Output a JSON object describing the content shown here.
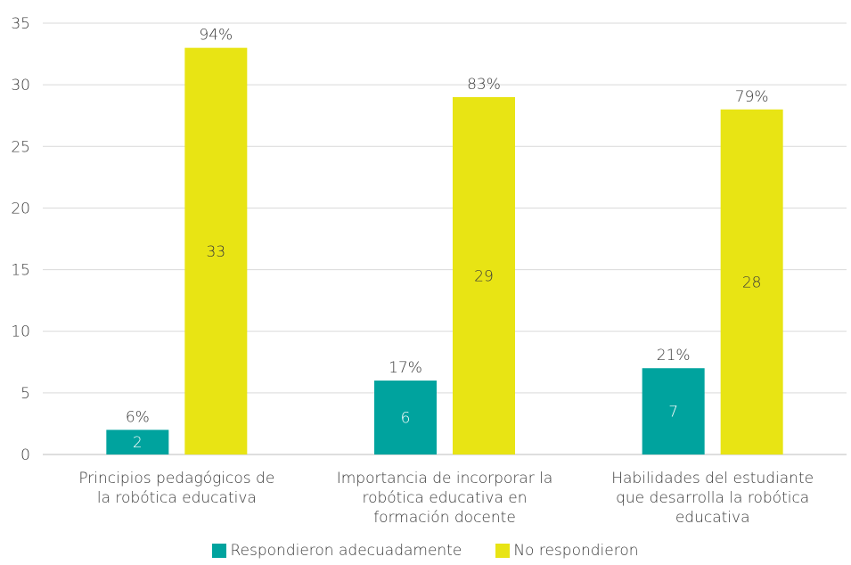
{
  "chart_data": {
    "type": "bar",
    "title": "",
    "xlabel": "",
    "ylabel": "",
    "ylim": [
      0,
      35
    ],
    "yticks": [
      0,
      5,
      10,
      15,
      20,
      25,
      30,
      35
    ],
    "grid": true,
    "legend_position": "bottom",
    "categories": [
      [
        "Principios pedagógicos de",
        "la robótica educativa"
      ],
      [
        "Importancia de incorporar la",
        "robótica educativa en",
        "formación docente"
      ],
      [
        "Habilidades del estudiante",
        "que desarrolla la robótica",
        "educativa"
      ]
    ],
    "series": [
      {
        "name": "Respondieron adecuadamente",
        "color": "#00a39e",
        "values": [
          2,
          6,
          7
        ],
        "percent_labels": [
          "6%",
          "17%",
          "21%"
        ]
      },
      {
        "name": "No respondieron",
        "color": "#e8e414",
        "values": [
          33,
          29,
          28
        ],
        "percent_labels": [
          "94%",
          "83%",
          "79%"
        ]
      }
    ]
  }
}
